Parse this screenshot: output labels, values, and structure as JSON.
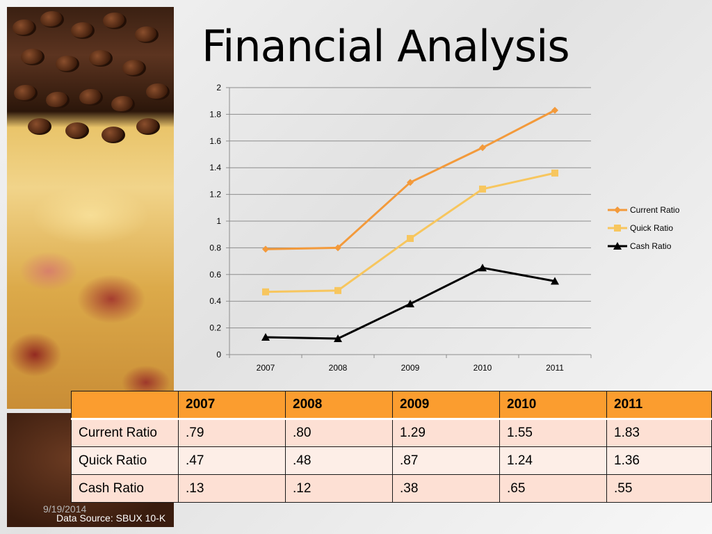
{
  "slide": {
    "title": "Financial Analysis",
    "date": "9/19/2014",
    "data_source": "Data Source: SBUX 10-K"
  },
  "chart_data": {
    "type": "line",
    "title": "",
    "xlabel": "",
    "ylabel": "",
    "x": [
      "2007",
      "2008",
      "2009",
      "2010",
      "2011"
    ],
    "ylim": [
      0,
      2
    ],
    "yticks": [
      "0",
      "0.2",
      "0.4",
      "0.6",
      "0.8",
      "1",
      "1.2",
      "1.4",
      "1.6",
      "1.8",
      "2"
    ],
    "grid": true,
    "legend_position": "right",
    "series": [
      {
        "name": "Current Ratio",
        "values": [
          0.79,
          0.8,
          1.29,
          1.55,
          1.83
        ],
        "color": "#f39a3b",
        "marker": "diamond"
      },
      {
        "name": "Quick Ratio",
        "values": [
          0.47,
          0.48,
          0.87,
          1.24,
          1.36
        ],
        "color": "#f7c65e",
        "marker": "square"
      },
      {
        "name": "Cash Ratio",
        "values": [
          0.13,
          0.12,
          0.38,
          0.65,
          0.55
        ],
        "color": "#000000",
        "marker": "triangle"
      }
    ]
  },
  "table": {
    "header": [
      "",
      "2007",
      "2008",
      "2009",
      "2010",
      "2011"
    ],
    "rows": [
      [
        "Current Ratio",
        ".79",
        ".80",
        "1.29",
        "1.55",
        "1.83"
      ],
      [
        "Quick Ratio",
        ".47",
        ".48",
        ".87",
        "1.24",
        "1.36"
      ],
      [
        "Cash Ratio",
        ".13",
        ".12",
        ".38",
        ".65",
        ".55"
      ]
    ]
  },
  "colors": {
    "table_header": "#fb9d2f",
    "table_row": "#fde0d4",
    "table_row_alt": "#fdeee7"
  }
}
